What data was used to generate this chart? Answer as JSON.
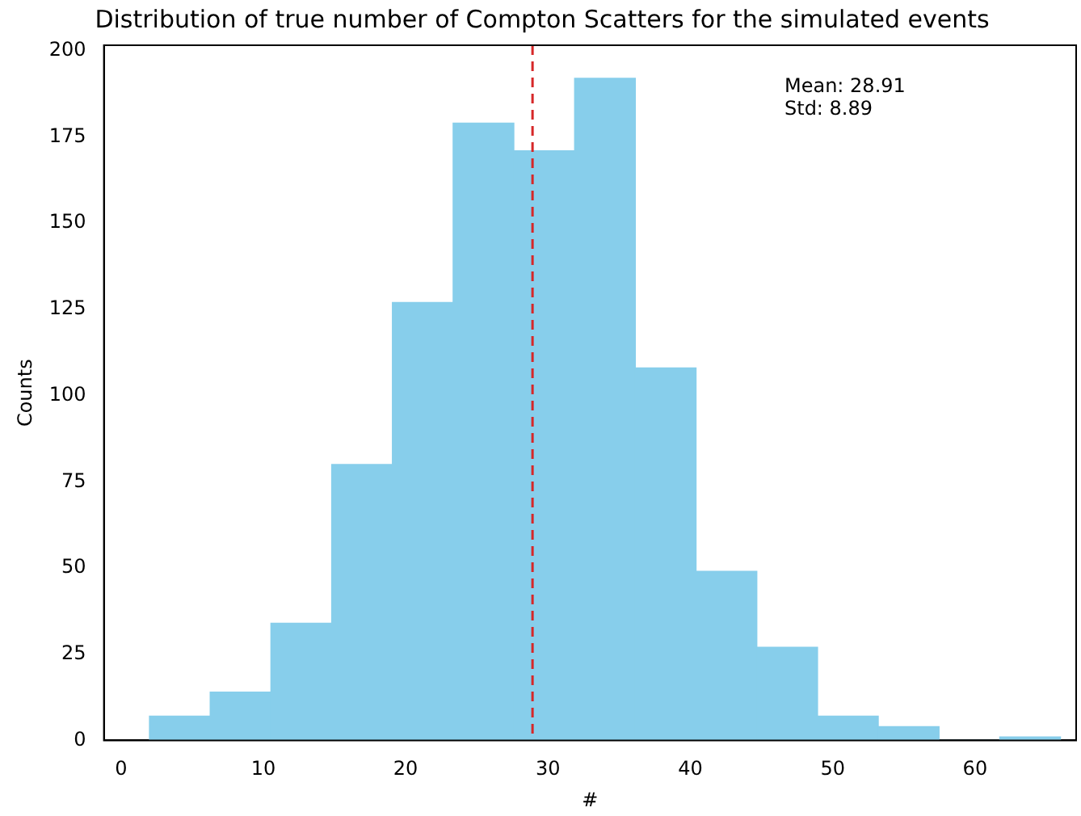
{
  "chart_data": {
    "type": "histogram",
    "title": "Distribution of true number of Compton Scatters for the simulated events",
    "xlabel": "#",
    "ylabel": "Counts",
    "bins": [
      2,
      6.27,
      10.53,
      14.8,
      19.07,
      23.33,
      27.6,
      31.87,
      36.13,
      40.4,
      44.67,
      48.93,
      53.2,
      57.47,
      61.73,
      66
    ],
    "values": [
      7,
      14,
      34,
      80,
      127,
      179,
      171,
      192,
      108,
      49,
      27,
      7,
      4,
      0,
      1
    ],
    "color": "#87ceeb",
    "xlim": [
      -1.2,
      67.1
    ],
    "ylim": [
      0,
      201.6
    ],
    "xticks": [
      0,
      10,
      20,
      30,
      40,
      50,
      60
    ],
    "yticks": [
      0,
      25,
      50,
      75,
      100,
      125,
      150,
      175,
      200
    ],
    "ref_lines": [
      {
        "axis": "x",
        "value": 28.91,
        "color": "#d62728",
        "line_style": "dashed"
      }
    ],
    "annotations": [
      "Mean: 28.91",
      "Std: 8.89"
    ],
    "grid": false,
    "legend": false
  }
}
